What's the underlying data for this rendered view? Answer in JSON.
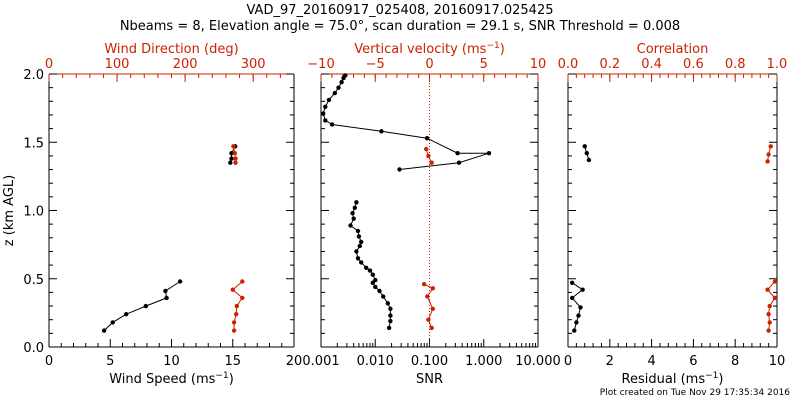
{
  "header": {
    "title_line1": "VAD_97_20160917_025408, 20160917.025425",
    "title_line2": "Nbeams = 8, Elevation angle = 75.0°, scan duration = 29.1 s, SNR Threshold = 0.008"
  },
  "footer": {
    "note": "Plot created on Tue Nov 29 17:35:34 2016"
  },
  "colors": {
    "black": "#000000",
    "red": "#cc2200"
  },
  "chart_data": [
    {
      "type": "line",
      "panel": "wind",
      "ylabel": "z (km AGL)",
      "ylim": [
        0,
        2
      ],
      "yticks": [
        "0.0",
        "0.5",
        "1.0",
        "1.5",
        "2.0"
      ],
      "bottom_axis": {
        "label": "Wind Speed (ms⁻¹)",
        "range": [
          0,
          20
        ],
        "ticks": [
          "0",
          "5",
          "10",
          "15",
          "20"
        ]
      },
      "top_axis": {
        "label": "Wind Direction (deg)",
        "range": [
          0,
          360
        ],
        "ticks": [
          "0",
          "100",
          "200",
          "300"
        ]
      },
      "series": [
        {
          "axis": "bottom",
          "color": "#000000",
          "segments": [
            {
              "x": [
                10.7,
                9.5,
                9.6,
                7.9,
                6.3,
                5.2,
                4.5
              ],
              "y": [
                0.48,
                0.41,
                0.36,
                0.3,
                0.24,
                0.18,
                0.12
              ]
            },
            {
              "x": [
                15.2,
                14.9,
                14.9,
                14.8
              ],
              "y": [
                1.47,
                1.42,
                1.38,
                1.35
              ]
            }
          ]
        },
        {
          "axis": "top",
          "color": "#cc2200",
          "segments": [
            {
              "x": [
                284,
                270,
                284,
                276,
                275,
                272,
                272
              ],
              "y": [
                0.48,
                0.42,
                0.36,
                0.3,
                0.24,
                0.18,
                0.12
              ]
            },
            {
              "x": [
                271,
                273,
                274,
                274
              ],
              "y": [
                1.47,
                1.42,
                1.38,
                1.35
              ]
            }
          ]
        }
      ]
    },
    {
      "type": "line",
      "panel": "snr",
      "ylim": [
        0,
        2
      ],
      "bottom_axis": {
        "label": "SNR",
        "scale": "log",
        "range": [
          0.001,
          10
        ],
        "ticks": [
          "0.001",
          "0.010",
          "0.100",
          "1.000",
          "10.000"
        ]
      },
      "top_axis": {
        "label": "Vertical velocity (ms⁻¹)",
        "range": [
          -10,
          10
        ],
        "ticks": [
          "−10",
          "−5",
          "0",
          "5",
          "10"
        ]
      },
      "reference_line": {
        "axis": "top",
        "x": 0,
        "style": "dotted",
        "color": "#cc2200"
      },
      "series": [
        {
          "axis": "bottom",
          "color": "#000000",
          "segments": [
            {
              "x": [
                0.0028,
                0.0026,
                0.0024,
                0.0021,
                0.0018,
                0.0014,
                0.0012,
                0.0011,
                0.0012,
                0.0016,
                0.013,
                0.09,
                0.33,
                1.25,
                0.35,
                0.028
              ],
              "y": [
                1.99,
                1.97,
                1.94,
                1.9,
                1.86,
                1.81,
                1.76,
                1.71,
                1.66,
                1.63,
                1.58,
                1.53,
                1.42,
                1.42,
                1.35,
                1.3
              ]
            },
            {
              "x": [
                0.0045,
                0.0042,
                0.0038,
                0.004,
                0.0035,
                0.0048,
                0.005,
                0.0055,
                0.0052,
                0.0045,
                0.0048,
                0.0055,
                0.0068,
                0.008,
                0.009,
                0.01,
                0.009,
                0.01,
                0.012,
                0.014,
                0.017,
                0.019,
                0.019,
                0.019,
                0.018
              ],
              "y": [
                1.06,
                1.02,
                0.98,
                0.94,
                0.89,
                0.85,
                0.81,
                0.77,
                0.74,
                0.7,
                0.65,
                0.62,
                0.58,
                0.56,
                0.53,
                0.49,
                0.47,
                0.44,
                0.41,
                0.37,
                0.32,
                0.28,
                0.23,
                0.19,
                0.14
              ]
            }
          ]
        },
        {
          "axis": "top",
          "color": "#cc2200",
          "segments": [
            {
              "x": [
                -0.3,
                -0.1,
                0.2
              ],
              "y": [
                1.45,
                1.4,
                1.35
              ]
            },
            {
              "x": [
                -0.5,
                0.3,
                -0.2,
                0.3,
                -0.1,
                0.2
              ],
              "y": [
                0.46,
                0.43,
                0.37,
                0.28,
                0.2,
                0.14
              ]
            }
          ]
        }
      ]
    },
    {
      "type": "line",
      "panel": "residual",
      "ylim": [
        0,
        2
      ],
      "bottom_axis": {
        "label": "Residual (ms⁻¹)",
        "range": [
          0,
          10
        ],
        "ticks": [
          "0",
          "2",
          "4",
          "6",
          "8",
          "10"
        ]
      },
      "top_axis": {
        "label": "Correlation",
        "range": [
          0,
          1
        ],
        "ticks": [
          "0.0",
          "0.2",
          "0.4",
          "0.6",
          "0.8",
          "1.0"
        ]
      },
      "series": [
        {
          "axis": "bottom",
          "color": "#000000",
          "segments": [
            {
              "x": [
                0.8,
                0.9,
                1.0
              ],
              "y": [
                1.47,
                1.42,
                1.37
              ]
            },
            {
              "x": [
                0.2,
                0.7,
                0.2,
                0.6,
                0.5,
                0.4,
                0.3
              ],
              "y": [
                0.47,
                0.42,
                0.36,
                0.29,
                0.23,
                0.18,
                0.12
              ]
            }
          ]
        },
        {
          "axis": "top",
          "color": "#cc2200",
          "segments": [
            {
              "x": [
                0.97,
                0.96,
                0.955
              ],
              "y": [
                1.47,
                1.41,
                1.36
              ]
            },
            {
              "x": [
                0.99,
                0.955,
                0.99,
                0.965,
                0.96,
                0.965,
                0.96
              ],
              "y": [
                0.48,
                0.42,
                0.36,
                0.3,
                0.24,
                0.18,
                0.12
              ]
            }
          ]
        }
      ]
    }
  ]
}
